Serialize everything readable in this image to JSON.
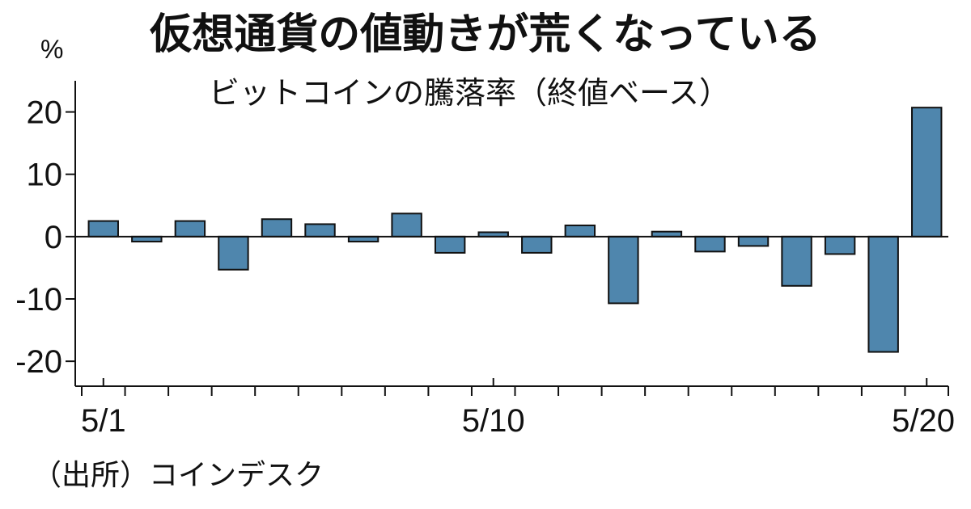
{
  "chart_data": {
    "type": "bar",
    "title": "仮想通貨の値動きが荒くなっている",
    "subtitle": "ビットコインの騰落率（終値ベース）",
    "ylabel": "%",
    "source": "（出所）コインデスク",
    "categories": [
      "5/1",
      "5/2",
      "5/3",
      "5/4",
      "5/5",
      "5/6",
      "5/7",
      "5/8",
      "5/9",
      "5/10",
      "5/11",
      "5/12",
      "5/13",
      "5/14",
      "5/15",
      "5/16",
      "5/17",
      "5/18",
      "5/19",
      "5/20"
    ],
    "values": [
      2.5,
      -0.8,
      2.5,
      -5.3,
      2.8,
      2.0,
      -0.8,
      3.7,
      -2.6,
      0.7,
      -2.6,
      1.8,
      -10.7,
      0.8,
      -2.4,
      -1.5,
      -7.9,
      -2.8,
      -18.5,
      20.7
    ],
    "ylim": [
      -24,
      25
    ],
    "yticks": [
      -20,
      -10,
      0,
      10,
      20
    ],
    "yticklabels": [
      "-20",
      "-10",
      "0",
      "10",
      "20"
    ],
    "xticklabels": [
      {
        "index": 0,
        "label": "5/1"
      },
      {
        "index": 9,
        "label": "5/10"
      },
      {
        "index": 19,
        "label": "5/20"
      }
    ],
    "bar_color": "#4f86ad",
    "grid": false,
    "legend": "none"
  }
}
